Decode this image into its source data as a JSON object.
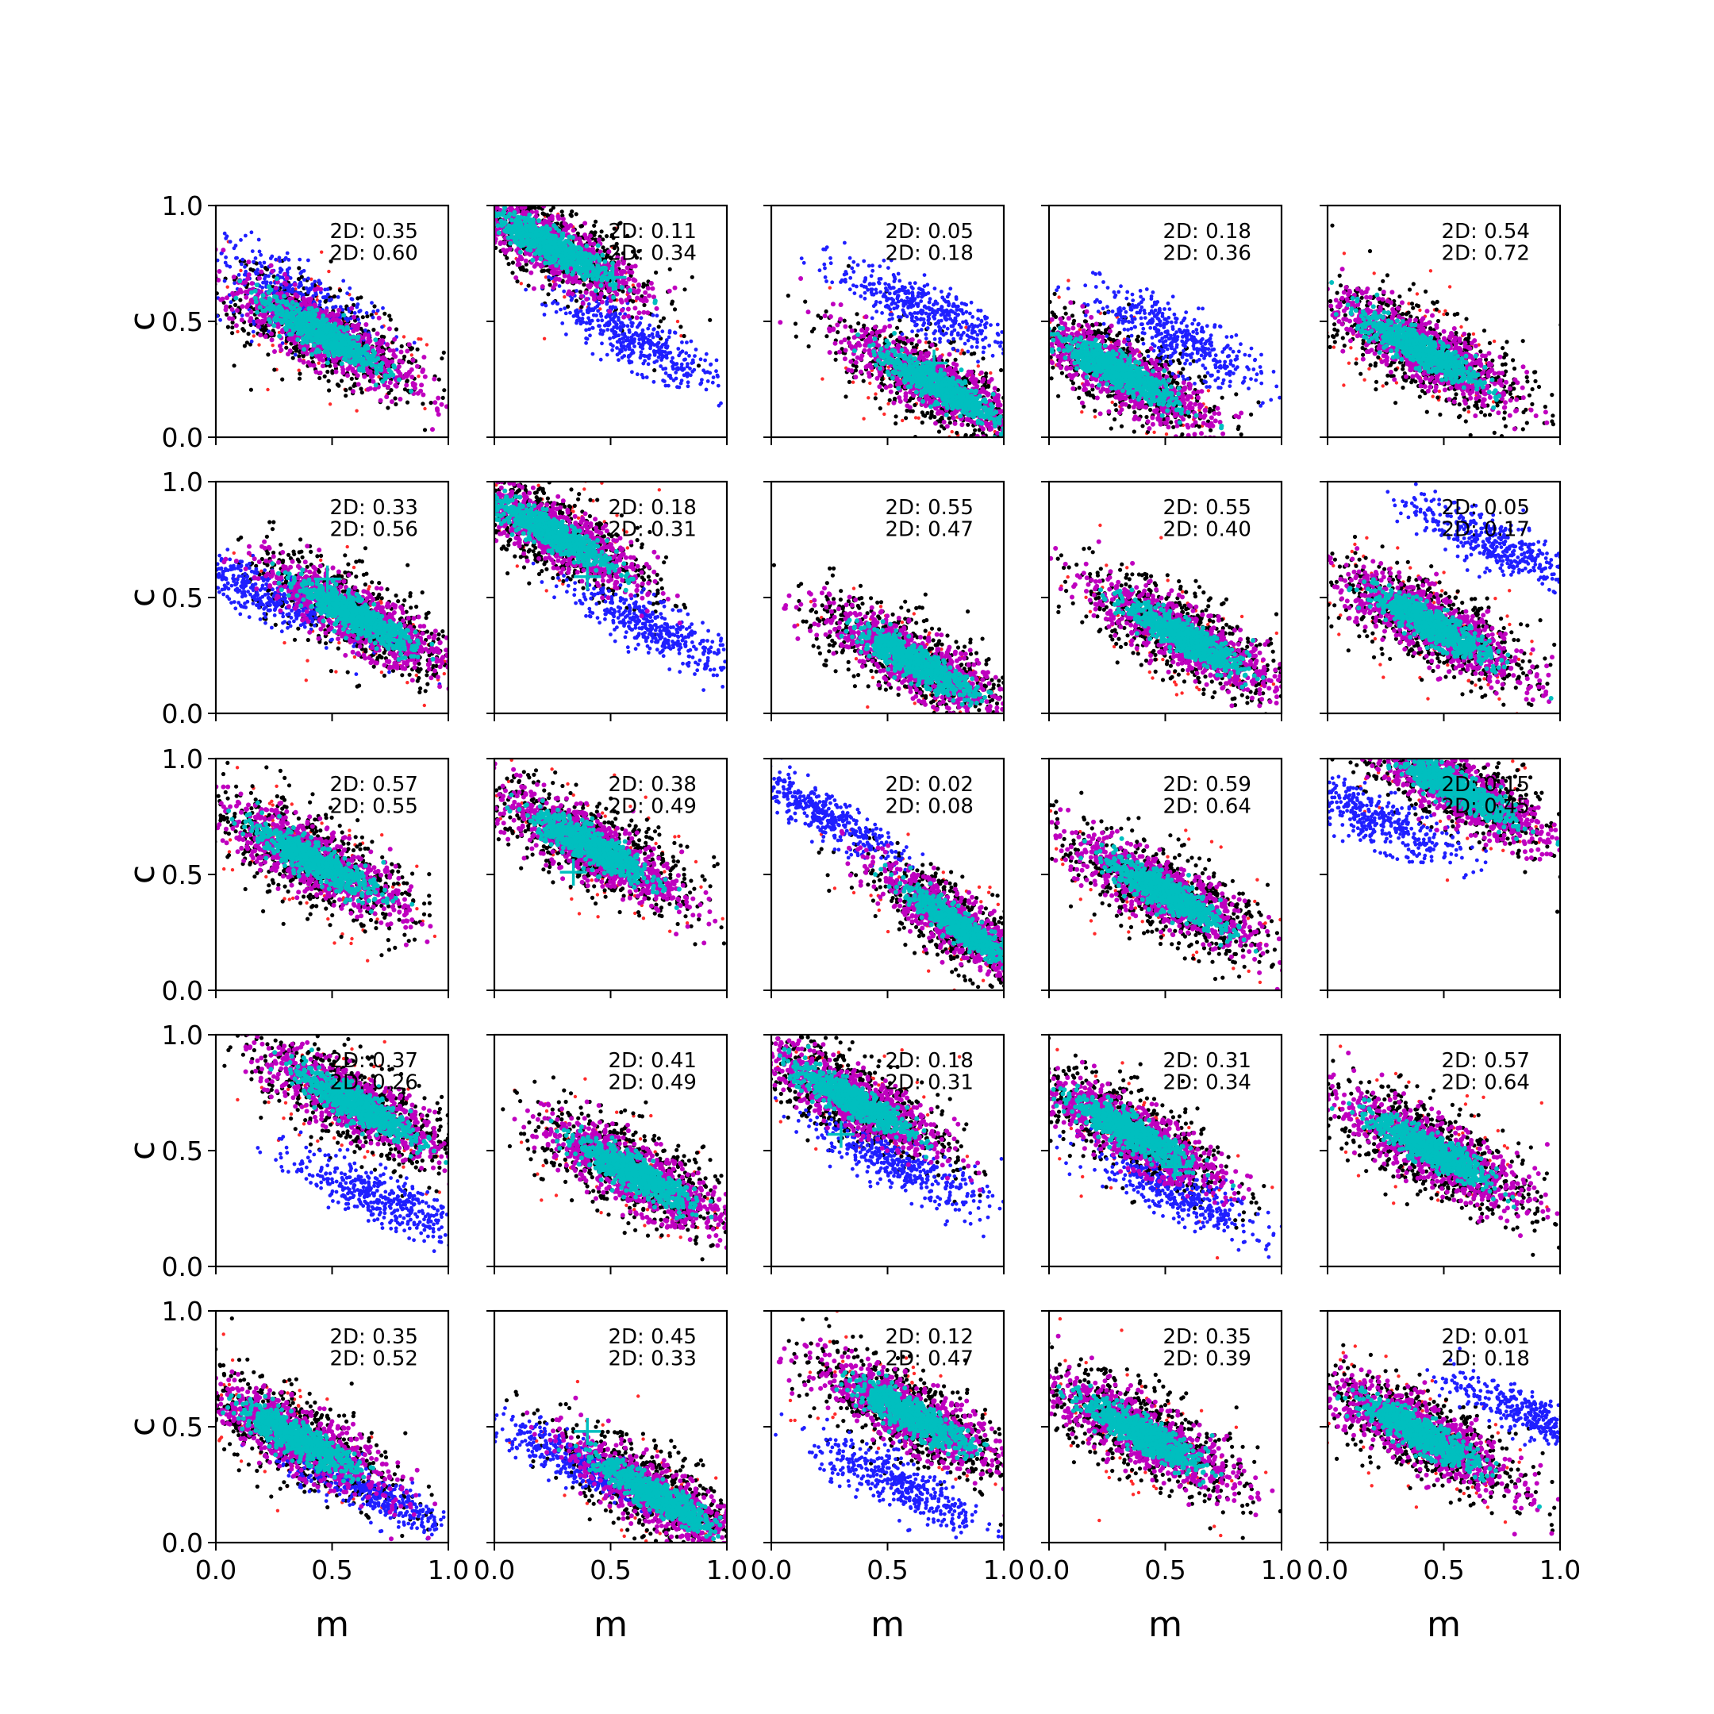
{
  "figure": {
    "type": "scatter-grid",
    "rows": 5,
    "cols": 5,
    "xlabel": "m",
    "ylabel": "c",
    "xlim": [
      0.0,
      1.0
    ],
    "ylim": [
      0.0,
      1.0
    ],
    "xticks": [
      "0.0",
      "0.5",
      "1.0"
    ],
    "yticks": [
      "0.0",
      "0.5",
      "1.0"
    ],
    "colors": {
      "red": "#ff2a2a",
      "black": "#000000",
      "blue": "#1f1fff",
      "magenta": "#bf00bf",
      "cyan": "#00bfbf",
      "marker": "#00bfbf"
    }
  },
  "chart_data": [
    {
      "row": 0,
      "col": 0,
      "stat1": "2D: 0.35",
      "stat2": "2D: 0.60",
      "main": {
        "cx": 0.45,
        "cy": 0.45,
        "slope": -0.55,
        "w": 0.085
      },
      "blue": {
        "cx": 0.35,
        "cy": 0.58,
        "slope": -0.55,
        "w": 0.09
      }
    },
    {
      "row": 0,
      "col": 1,
      "stat1": "2D: 0.11",
      "stat2": "2D: 0.34",
      "main": {
        "cx": 0.25,
        "cy": 0.82,
        "slope": -0.55,
        "w": 0.08
      },
      "blue": {
        "cx": 0.6,
        "cy": 0.42,
        "slope": -0.55,
        "w": 0.06
      },
      "marker": {
        "x": 0.51,
        "y": 0.69
      }
    },
    {
      "row": 0,
      "col": 2,
      "stat1": "2D: 0.05",
      "stat2": "2D: 0.18",
      "main": {
        "cx": 0.72,
        "cy": 0.22,
        "slope": -0.55,
        "w": 0.08
      },
      "blue": {
        "cx": 0.65,
        "cy": 0.56,
        "slope": -0.45,
        "w": 0.06
      },
      "marker": {
        "x": 0.7,
        "y": 0.32
      }
    },
    {
      "row": 0,
      "col": 3,
      "stat1": "2D: 0.18",
      "stat2": "2D: 0.36",
      "main": {
        "cx": 0.3,
        "cy": 0.28,
        "slope": -0.55,
        "w": 0.08
      },
      "blue": {
        "cx": 0.55,
        "cy": 0.43,
        "slope": -0.55,
        "w": 0.07
      },
      "marker": {
        "x": 0.35,
        "y": 0.3
      }
    },
    {
      "row": 0,
      "col": 4,
      "stat1": "2D: 0.54",
      "stat2": "2D: 0.72",
      "main": {
        "cx": 0.4,
        "cy": 0.38,
        "slope": -0.55,
        "w": 0.085
      }
    },
    {
      "row": 1,
      "col": 0,
      "stat1": "2D: 0.33",
      "stat2": "2D: 0.56",
      "main": {
        "cx": 0.6,
        "cy": 0.42,
        "slope": -0.55,
        "w": 0.08
      },
      "blue": {
        "cx": 0.2,
        "cy": 0.52,
        "slope": -0.45,
        "w": 0.06
      },
      "marker": {
        "x": 0.48,
        "y": 0.58
      }
    },
    {
      "row": 1,
      "col": 1,
      "stat1": "2D: 0.18",
      "stat2": "2D: 0.31",
      "main": {
        "cx": 0.25,
        "cy": 0.78,
        "slope": -0.55,
        "w": 0.08
      },
      "blue": {
        "cx": 0.7,
        "cy": 0.36,
        "slope": -0.5,
        "w": 0.06
      },
      "marker": {
        "x": 0.4,
        "y": 0.59
      }
    },
    {
      "row": 1,
      "col": 2,
      "stat1": "2D: 0.55",
      "stat2": "2D: 0.47",
      "main": {
        "cx": 0.62,
        "cy": 0.22,
        "slope": -0.55,
        "w": 0.08
      },
      "marker": {
        "x": 0.53,
        "y": 0.27
      }
    },
    {
      "row": 1,
      "col": 3,
      "stat1": "2D: 0.55",
      "stat2": "2D: 0.40",
      "main": {
        "cx": 0.58,
        "cy": 0.33,
        "slope": -0.55,
        "w": 0.08
      },
      "marker": {
        "x": 0.52,
        "y": 0.38
      }
    },
    {
      "row": 1,
      "col": 4,
      "stat1": "2D: 0.05",
      "stat2": "2D: 0.17",
      "main": {
        "cx": 0.45,
        "cy": 0.38,
        "slope": -0.55,
        "w": 0.085
      },
      "blue": {
        "cx": 0.7,
        "cy": 0.74,
        "slope": -0.45,
        "w": 0.06
      }
    },
    {
      "row": 2,
      "col": 0,
      "stat1": "2D: 0.57",
      "stat2": "2D: 0.55",
      "main": {
        "cx": 0.42,
        "cy": 0.56,
        "slope": -0.55,
        "w": 0.085
      }
    },
    {
      "row": 2,
      "col": 1,
      "stat1": "2D: 0.38",
      "stat2": "2D: 0.49",
      "main": {
        "cx": 0.42,
        "cy": 0.62,
        "slope": -0.55,
        "w": 0.085
      },
      "marker": {
        "x": 0.34,
        "y": 0.51
      }
    },
    {
      "row": 2,
      "col": 2,
      "stat1": "2D: 0.02",
      "stat2": "2D: 0.08",
      "main": {
        "cx": 0.82,
        "cy": 0.27,
        "slope": -0.7,
        "w": 0.07
      },
      "blue": {
        "cx": 0.2,
        "cy": 0.77,
        "slope": -0.55,
        "w": 0.05
      },
      "marker": {
        "x": 0.64,
        "y": 0.39
      }
    },
    {
      "row": 2,
      "col": 3,
      "stat1": "2D: 0.59",
      "stat2": "2D: 0.64",
      "main": {
        "cx": 0.5,
        "cy": 0.42,
        "slope": -0.55,
        "w": 0.085
      }
    },
    {
      "row": 2,
      "col": 4,
      "stat1": "2D: 0.15",
      "stat2": "2D: 0.45",
      "main": {
        "cx": 0.55,
        "cy": 0.87,
        "slope": -0.55,
        "w": 0.08
      },
      "blue": {
        "cx": 0.2,
        "cy": 0.74,
        "slope": -0.45,
        "w": 0.06
      }
    },
    {
      "row": 3,
      "col": 0,
      "stat1": "2D: 0.37",
      "stat2": "2D: 0.26",
      "main": {
        "cx": 0.6,
        "cy": 0.7,
        "slope": -0.55,
        "w": 0.085
      },
      "blue": {
        "cx": 0.7,
        "cy": 0.3,
        "slope": -0.45,
        "w": 0.06
      },
      "marker": {
        "x": 0.58,
        "y": 0.7
      }
    },
    {
      "row": 3,
      "col": 1,
      "stat1": "2D: 0.41",
      "stat2": "2D: 0.49",
      "main": {
        "cx": 0.6,
        "cy": 0.4,
        "slope": -0.55,
        "w": 0.085
      }
    },
    {
      "row": 3,
      "col": 2,
      "stat1": "2D: 0.18",
      "stat2": "2D: 0.31",
      "main": {
        "cx": 0.35,
        "cy": 0.72,
        "slope": -0.55,
        "w": 0.08
      },
      "blue": {
        "cx": 0.55,
        "cy": 0.44,
        "slope": -0.5,
        "w": 0.06
      },
      "marker": {
        "x": 0.3,
        "y": 0.57
      }
    },
    {
      "row": 3,
      "col": 3,
      "stat1": "2D: 0.31",
      "stat2": "2D: 0.34",
      "main": {
        "cx": 0.35,
        "cy": 0.58,
        "slope": -0.55,
        "w": 0.08
      },
      "blue": {
        "cx": 0.55,
        "cy": 0.32,
        "slope": -0.5,
        "w": 0.06
      },
      "marker": {
        "x": 0.54,
        "y": 0.43
      }
    },
    {
      "row": 3,
      "col": 4,
      "stat1": "2D: 0.57",
      "stat2": "2D: 0.64",
      "main": {
        "cx": 0.45,
        "cy": 0.5,
        "slope": -0.55,
        "w": 0.085
      }
    },
    {
      "row": 4,
      "col": 0,
      "stat1": "2D: 0.35",
      "stat2": "2D: 0.52",
      "main": {
        "cx": 0.35,
        "cy": 0.45,
        "slope": -0.55,
        "w": 0.085
      },
      "blue": {
        "cx": 0.65,
        "cy": 0.22,
        "slope": -0.45,
        "w": 0.05
      },
      "marker": {
        "x": 0.49,
        "y": 0.38
      }
    },
    {
      "row": 4,
      "col": 1,
      "stat1": "2D: 0.45",
      "stat2": "2D: 0.33",
      "main": {
        "cx": 0.7,
        "cy": 0.2,
        "slope": -0.6,
        "w": 0.08
      },
      "blue": {
        "cx": 0.35,
        "cy": 0.35,
        "slope": -0.5,
        "w": 0.05
      },
      "marker": {
        "x": 0.4,
        "y": 0.48
      }
    },
    {
      "row": 4,
      "col": 2,
      "stat1": "2D: 0.12",
      "stat2": "2D: 0.47",
      "main": {
        "cx": 0.6,
        "cy": 0.55,
        "slope": -0.55,
        "w": 0.085
      },
      "blue": {
        "cx": 0.55,
        "cy": 0.25,
        "slope": -0.5,
        "w": 0.06
      }
    },
    {
      "row": 4,
      "col": 3,
      "stat1": "2D: 0.35",
      "stat2": "2D: 0.39",
      "main": {
        "cx": 0.4,
        "cy": 0.47,
        "slope": -0.55,
        "w": 0.085
      }
    },
    {
      "row": 4,
      "col": 4,
      "stat1": "2D: 0.01",
      "stat2": "2D: 0.18",
      "main": {
        "cx": 0.4,
        "cy": 0.47,
        "slope": -0.55,
        "w": 0.085
      },
      "blue": {
        "cx": 0.88,
        "cy": 0.55,
        "slope": -0.4,
        "w": 0.05
      }
    }
  ]
}
